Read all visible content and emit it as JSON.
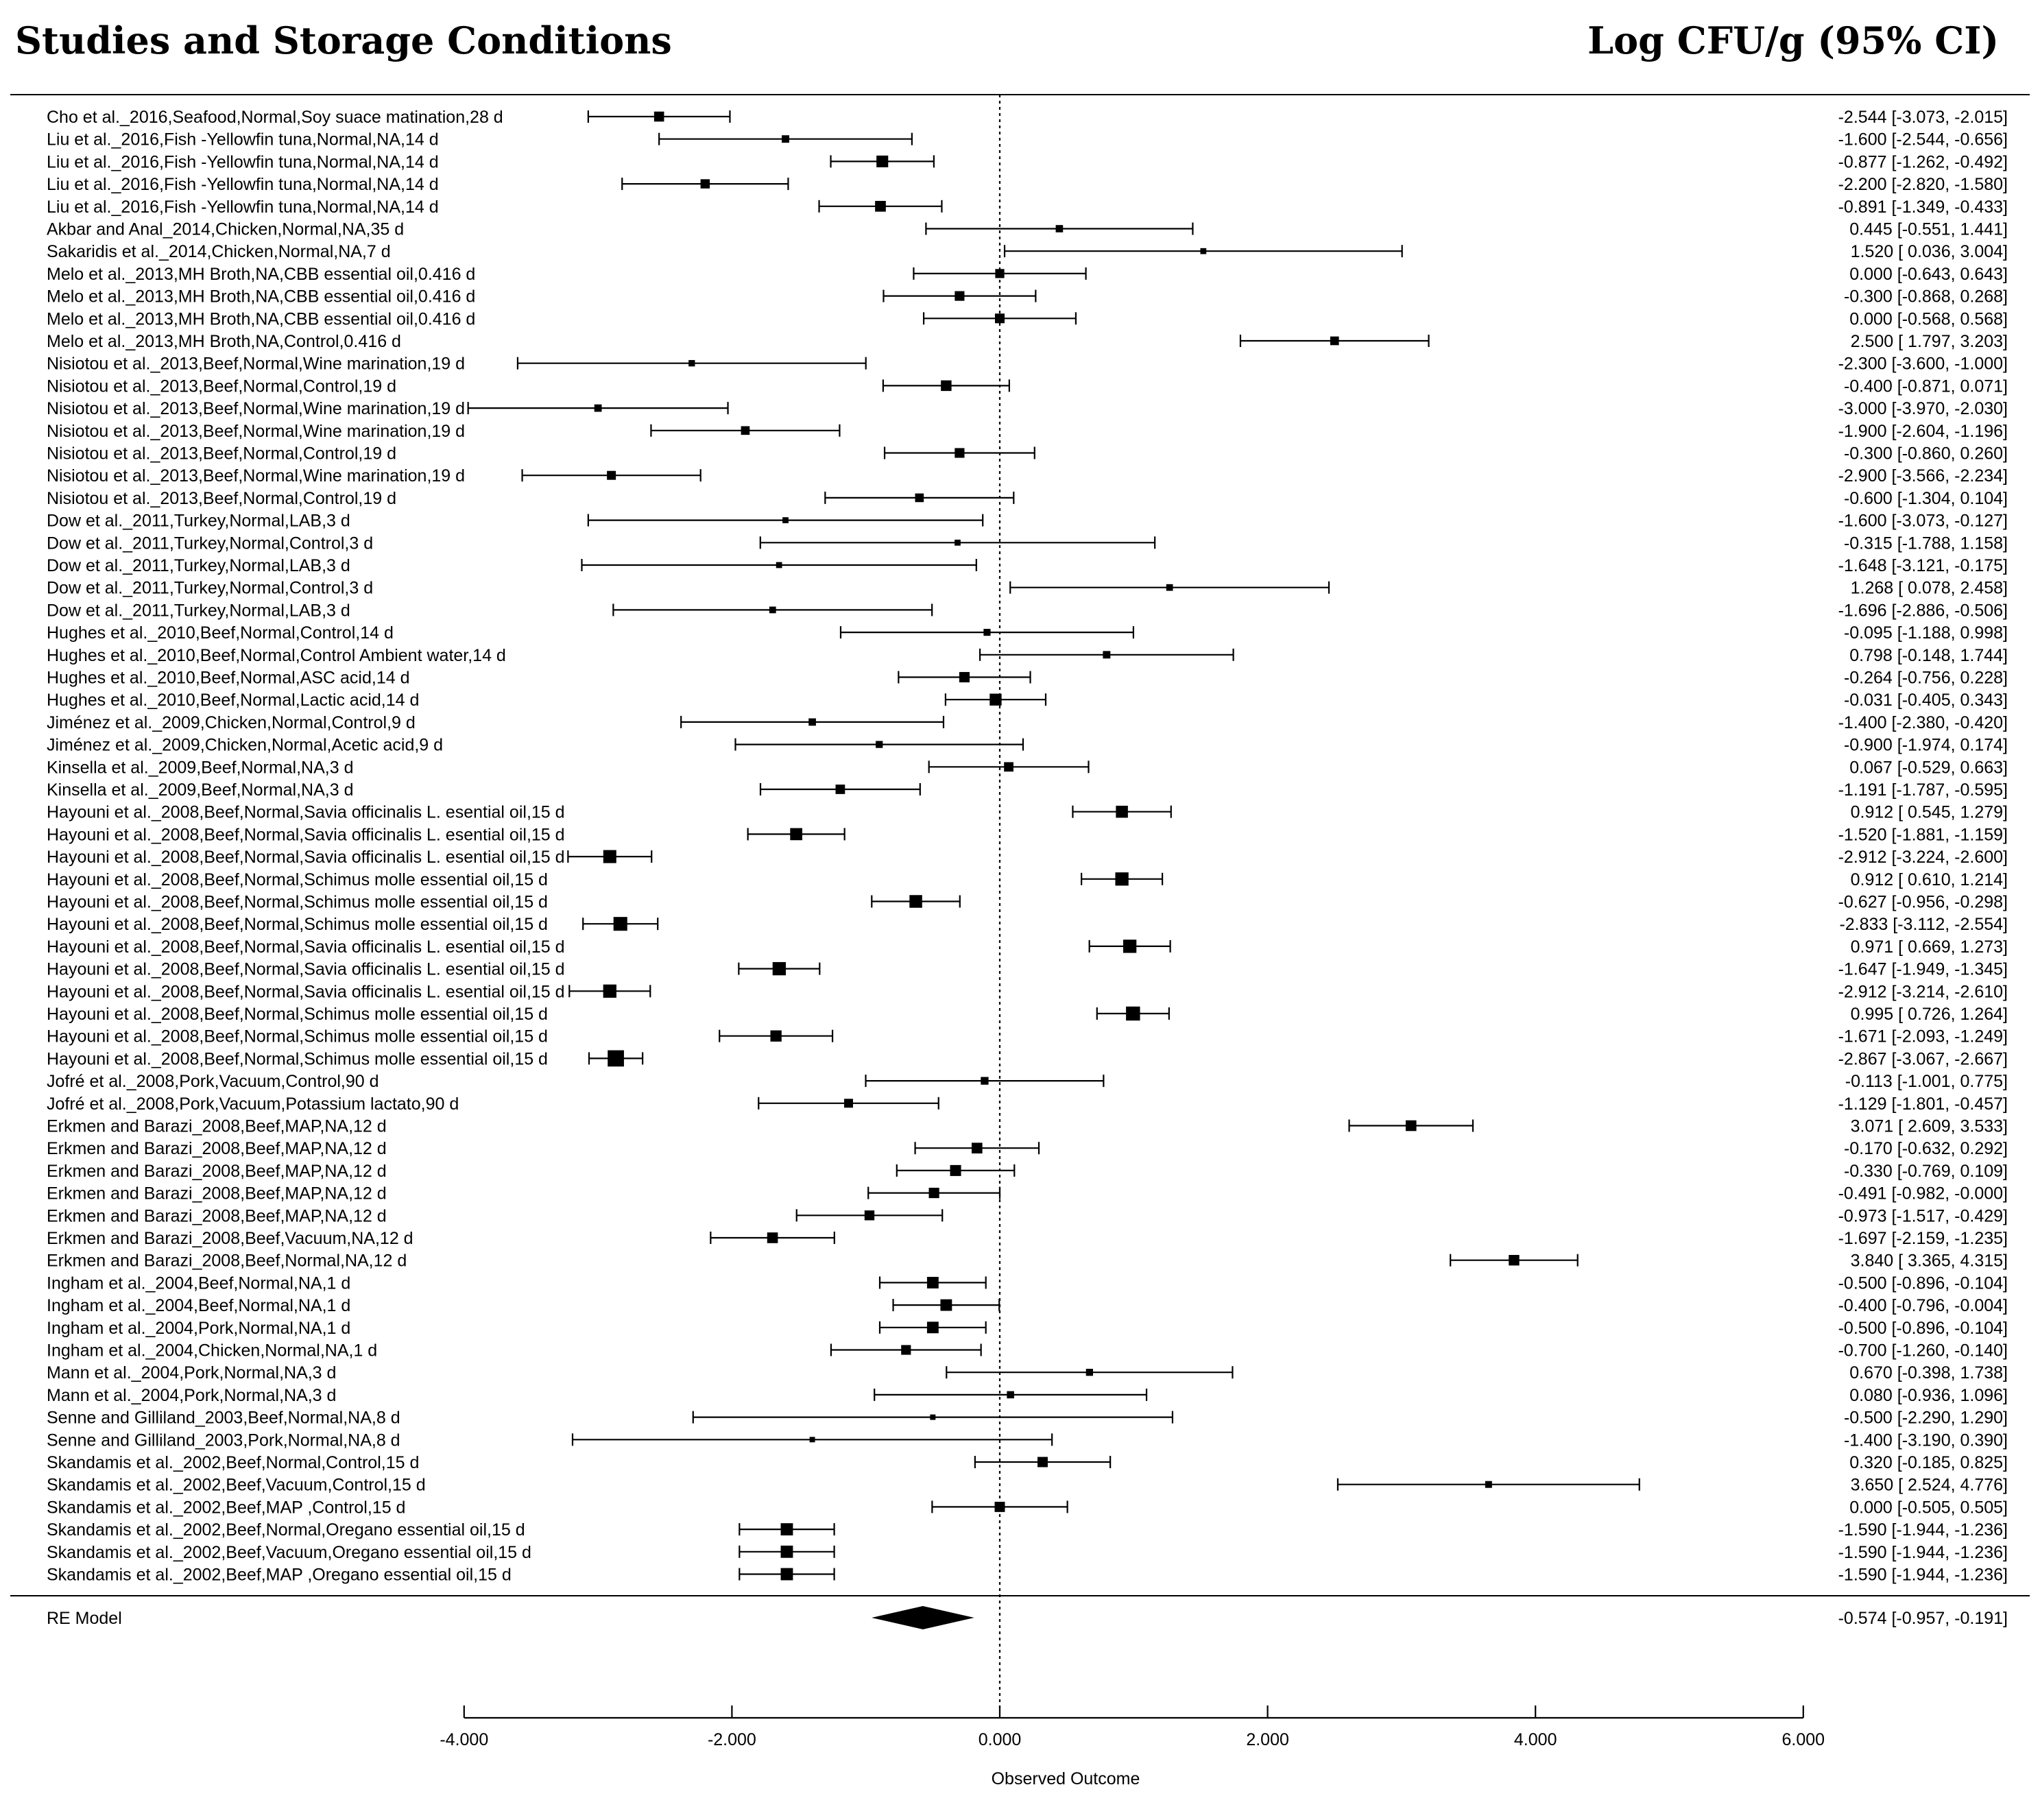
{
  "header": {
    "left_title": "Studies and Storage Conditions",
    "right_title": "Log CFU/g (95% CI)"
  },
  "chart_data": {
    "type": "forest",
    "xlabel": "Observed Outcome",
    "xlim": [
      -4.0,
      6.0
    ],
    "xticks": [
      -4.0,
      -2.0,
      0.0,
      2.0,
      4.0,
      6.0
    ],
    "xtick_labels": [
      "-4.000",
      "-2.000",
      "0.000",
      "2.000",
      "4.000",
      "6.000"
    ],
    "reference_line": 0,
    "studies": [
      {
        "label": "Cho et al._2016,Seafood,Normal,Soy suace matination,28 d",
        "est": -2.544,
        "lo": -3.073,
        "hi": -2.015,
        "text": "-2.544 [-3.073, -2.015]"
      },
      {
        "label": "Liu et al._2016,Fish -Yellowfin tuna,Normal,NA,14 d",
        "est": -1.6,
        "lo": -2.544,
        "hi": -0.656,
        "text": "-1.600 [-2.544, -0.656]"
      },
      {
        "label": "Liu et al._2016,Fish -Yellowfin tuna,Normal,NA,14 d",
        "est": -0.877,
        "lo": -1.262,
        "hi": -0.492,
        "text": "-0.877 [-1.262, -0.492]"
      },
      {
        "label": "Liu et al._2016,Fish -Yellowfin tuna,Normal,NA,14 d",
        "est": -2.2,
        "lo": -2.82,
        "hi": -1.58,
        "text": "-2.200 [-2.820, -1.580]"
      },
      {
        "label": "Liu et al._2016,Fish -Yellowfin tuna,Normal,NA,14 d",
        "est": -0.891,
        "lo": -1.349,
        "hi": -0.433,
        "text": "-0.891 [-1.349, -0.433]"
      },
      {
        "label": "Akbar and Anal_2014,Chicken,Normal,NA,35 d",
        "est": 0.445,
        "lo": -0.551,
        "hi": 1.441,
        "text": "0.445 [-0.551, 1.441]"
      },
      {
        "label": "Sakaridis et al._2014,Chicken,Normal,NA,7 d",
        "est": 1.52,
        "lo": 0.036,
        "hi": 3.004,
        "text": "1.520 [ 0.036, 3.004]"
      },
      {
        "label": "Melo et al._2013,MH Broth,NA,CBB essential oil,0.416 d",
        "est": 0.0,
        "lo": -0.643,
        "hi": 0.643,
        "text": "0.000 [-0.643, 0.643]"
      },
      {
        "label": "Melo et al._2013,MH Broth,NA,CBB essential oil,0.416 d",
        "est": -0.3,
        "lo": -0.868,
        "hi": 0.268,
        "text": "-0.300 [-0.868, 0.268]"
      },
      {
        "label": "Melo et al._2013,MH Broth,NA,CBB essential oil,0.416 d",
        "est": 0.0,
        "lo": -0.568,
        "hi": 0.568,
        "text": "0.000 [-0.568, 0.568]"
      },
      {
        "label": "Melo et al._2013,MH Broth,NA,Control,0.416 d",
        "est": 2.5,
        "lo": 1.797,
        "hi": 3.203,
        "text": "2.500 [ 1.797, 3.203]"
      },
      {
        "label": "Nisiotou et al._2013,Beef,Normal,Wine marination,19 d",
        "est": -2.3,
        "lo": -3.6,
        "hi": -1.0,
        "text": "-2.300 [-3.600, -1.000]"
      },
      {
        "label": "Nisiotou et al._2013,Beef,Normal,Control,19 d",
        "est": -0.4,
        "lo": -0.871,
        "hi": 0.071,
        "text": "-0.400 [-0.871, 0.071]"
      },
      {
        "label": "Nisiotou et al._2013,Beef,Normal,Wine marination,19 d",
        "est": -3.0,
        "lo": -3.97,
        "hi": -2.03,
        "text": "-3.000 [-3.970, -2.030]"
      },
      {
        "label": "Nisiotou et al._2013,Beef,Normal,Wine marination,19 d",
        "est": -1.9,
        "lo": -2.604,
        "hi": -1.196,
        "text": "-1.900 [-2.604, -1.196]"
      },
      {
        "label": "Nisiotou et al._2013,Beef,Normal,Control,19 d",
        "est": -0.3,
        "lo": -0.86,
        "hi": 0.26,
        "text": "-0.300 [-0.860, 0.260]"
      },
      {
        "label": "Nisiotou et al._2013,Beef,Normal,Wine marination,19 d",
        "est": -2.9,
        "lo": -3.566,
        "hi": -2.234,
        "text": "-2.900 [-3.566, -2.234]"
      },
      {
        "label": "Nisiotou et al._2013,Beef,Normal,Control,19 d",
        "est": -0.6,
        "lo": -1.304,
        "hi": 0.104,
        "text": "-0.600 [-1.304, 0.104]"
      },
      {
        "label": "Dow et al._2011,Turkey,Normal,LAB,3 d",
        "est": -1.6,
        "lo": -3.073,
        "hi": -0.127,
        "text": "-1.600 [-3.073, -0.127]"
      },
      {
        "label": "Dow et al._2011,Turkey,Normal,Control,3 d",
        "est": -0.315,
        "lo": -1.788,
        "hi": 1.158,
        "text": "-0.315 [-1.788, 1.158]"
      },
      {
        "label": "Dow et al._2011,Turkey,Normal,LAB,3 d",
        "est": -1.648,
        "lo": -3.121,
        "hi": -0.175,
        "text": "-1.648 [-3.121, -0.175]"
      },
      {
        "label": "Dow et al._2011,Turkey,Normal,Control,3 d",
        "est": 1.268,
        "lo": 0.078,
        "hi": 2.458,
        "text": "1.268 [ 0.078, 2.458]"
      },
      {
        "label": "Dow et al._2011,Turkey,Normal,LAB,3 d",
        "est": -1.696,
        "lo": -2.886,
        "hi": -0.506,
        "text": "-1.696 [-2.886, -0.506]"
      },
      {
        "label": "Hughes et al._2010,Beef,Normal,Control,14 d",
        "est": -0.095,
        "lo": -1.188,
        "hi": 0.998,
        "text": "-0.095 [-1.188, 0.998]"
      },
      {
        "label": "Hughes et al._2010,Beef,Normal,Control Ambient water,14 d",
        "est": 0.798,
        "lo": -0.148,
        "hi": 1.744,
        "text": "0.798 [-0.148, 1.744]"
      },
      {
        "label": "Hughes et al._2010,Beef,Normal,ASC acid,14 d",
        "est": -0.264,
        "lo": -0.756,
        "hi": 0.228,
        "text": "-0.264 [-0.756, 0.228]"
      },
      {
        "label": "Hughes et al._2010,Beef,Normal,Lactic acid,14 d",
        "est": -0.031,
        "lo": -0.405,
        "hi": 0.343,
        "text": "-0.031 [-0.405, 0.343]"
      },
      {
        "label": "Jiménez et al._2009,Chicken,Normal,Control,9 d",
        "est": -1.4,
        "lo": -2.38,
        "hi": -0.42,
        "text": "-1.400 [-2.380, -0.420]"
      },
      {
        "label": "Jiménez et al._2009,Chicken,Normal,Acetic acid,9 d",
        "est": -0.9,
        "lo": -1.974,
        "hi": 0.174,
        "text": "-0.900 [-1.974, 0.174]"
      },
      {
        "label": "Kinsella et al._2009,Beef,Normal,NA,3 d",
        "est": 0.067,
        "lo": -0.529,
        "hi": 0.663,
        "text": "0.067 [-0.529, 0.663]"
      },
      {
        "label": "Kinsella et al._2009,Beef,Normal,NA,3 d",
        "est": -1.191,
        "lo": -1.787,
        "hi": -0.595,
        "text": "-1.191 [-1.787, -0.595]"
      },
      {
        "label": "Hayouni et al._2008,Beef,Normal,Savia officinalis L. esential oil,15 d",
        "est": 0.912,
        "lo": 0.545,
        "hi": 1.279,
        "text": "0.912 [ 0.545, 1.279]"
      },
      {
        "label": "Hayouni et al._2008,Beef,Normal,Savia officinalis L. esential oil,15 d",
        "est": -1.52,
        "lo": -1.881,
        "hi": -1.159,
        "text": "-1.520 [-1.881, -1.159]"
      },
      {
        "label": "Hayouni et al._2008,Beef,Normal,Savia officinalis L. esential oil,15 d",
        "est": -2.912,
        "lo": -3.224,
        "hi": -2.6,
        "text": "-2.912 [-3.224, -2.600]"
      },
      {
        "label": "Hayouni et al._2008,Beef,Normal,Schimus molle essential oil,15 d",
        "est": 0.912,
        "lo": 0.61,
        "hi": 1.214,
        "text": "0.912 [ 0.610, 1.214]"
      },
      {
        "label": "Hayouni et al._2008,Beef,Normal,Schimus molle essential oil,15 d",
        "est": -0.627,
        "lo": -0.956,
        "hi": -0.298,
        "text": "-0.627 [-0.956, -0.298]"
      },
      {
        "label": "Hayouni et al._2008,Beef,Normal,Schimus molle essential oil,15 d",
        "est": -2.833,
        "lo": -3.112,
        "hi": -2.554,
        "text": "-2.833 [-3.112, -2.554]"
      },
      {
        "label": "Hayouni et al._2008,Beef,Normal,Savia officinalis L. esential oil,15 d",
        "est": 0.971,
        "lo": 0.669,
        "hi": 1.273,
        "text": "0.971 [ 0.669, 1.273]"
      },
      {
        "label": "Hayouni et al._2008,Beef,Normal,Savia officinalis L. esential oil,15 d",
        "est": -1.647,
        "lo": -1.949,
        "hi": -1.345,
        "text": "-1.647 [-1.949, -1.345]"
      },
      {
        "label": "Hayouni et al._2008,Beef,Normal,Savia officinalis L. esential oil,15 d",
        "est": -2.912,
        "lo": -3.214,
        "hi": -2.61,
        "text": "-2.912 [-3.214, -2.610]"
      },
      {
        "label": "Hayouni et al._2008,Beef,Normal,Schimus molle essential oil,15 d",
        "est": 0.995,
        "lo": 0.726,
        "hi": 1.264,
        "text": "0.995 [ 0.726, 1.264]"
      },
      {
        "label": "Hayouni et al._2008,Beef,Normal,Schimus molle essential oil,15 d",
        "est": -1.671,
        "lo": -2.093,
        "hi": -1.249,
        "text": "-1.671 [-2.093, -1.249]"
      },
      {
        "label": "Hayouni et al._2008,Beef,Normal,Schimus molle essential oil,15 d",
        "est": -2.867,
        "lo": -3.067,
        "hi": -2.667,
        "text": "-2.867 [-3.067, -2.667]"
      },
      {
        "label": "Jofré et al._2008,Pork,Vacuum,Control,90 d",
        "est": -0.113,
        "lo": -1.001,
        "hi": 0.775,
        "text": "-0.113 [-1.001, 0.775]"
      },
      {
        "label": "Jofré et al._2008,Pork,Vacuum,Potassium lactato,90 d",
        "est": -1.129,
        "lo": -1.801,
        "hi": -0.457,
        "text": "-1.129 [-1.801, -0.457]"
      },
      {
        "label": "Erkmen and Barazi_2008,Beef,MAP,NA,12 d",
        "est": 3.071,
        "lo": 2.609,
        "hi": 3.533,
        "text": "3.071 [ 2.609, 3.533]"
      },
      {
        "label": "Erkmen and Barazi_2008,Beef,MAP,NA,12 d",
        "est": -0.17,
        "lo": -0.632,
        "hi": 0.292,
        "text": "-0.170 [-0.632, 0.292]"
      },
      {
        "label": "Erkmen and Barazi_2008,Beef,MAP,NA,12 d",
        "est": -0.33,
        "lo": -0.769,
        "hi": 0.109,
        "text": "-0.330 [-0.769, 0.109]"
      },
      {
        "label": "Erkmen and Barazi_2008,Beef,MAP,NA,12 d",
        "est": -0.491,
        "lo": -0.982,
        "hi": -0.0,
        "text": "-0.491 [-0.982, -0.000]"
      },
      {
        "label": "Erkmen and Barazi_2008,Beef,MAP,NA,12 d",
        "est": -0.973,
        "lo": -1.517,
        "hi": -0.429,
        "text": "-0.973 [-1.517, -0.429]"
      },
      {
        "label": "Erkmen and Barazi_2008,Beef,Vacuum,NA,12 d",
        "est": -1.697,
        "lo": -2.159,
        "hi": -1.235,
        "text": "-1.697 [-2.159, -1.235]"
      },
      {
        "label": "Erkmen and Barazi_2008,Beef,Normal,NA,12 d",
        "est": 3.84,
        "lo": 3.365,
        "hi": 4.315,
        "text": "3.840 [ 3.365, 4.315]"
      },
      {
        "label": "Ingham et al._2004,Beef,Normal,NA,1 d",
        "est": -0.5,
        "lo": -0.896,
        "hi": -0.104,
        "text": "-0.500 [-0.896, -0.104]"
      },
      {
        "label": "Ingham et al._2004,Beef,Normal,NA,1 d",
        "est": -0.4,
        "lo": -0.796,
        "hi": -0.004,
        "text": "-0.400 [-0.796, -0.004]"
      },
      {
        "label": "Ingham et al._2004,Pork,Normal,NA,1 d",
        "est": -0.5,
        "lo": -0.896,
        "hi": -0.104,
        "text": "-0.500 [-0.896, -0.104]"
      },
      {
        "label": "Ingham et al._2004,Chicken,Normal,NA,1 d",
        "est": -0.7,
        "lo": -1.26,
        "hi": -0.14,
        "text": "-0.700 [-1.260, -0.140]"
      },
      {
        "label": "Mann et al._2004,Pork,Normal,NA,3 d",
        "est": 0.67,
        "lo": -0.398,
        "hi": 1.738,
        "text": "0.670 [-0.398, 1.738]"
      },
      {
        "label": "Mann et al._2004,Pork,Normal,NA,3 d",
        "est": 0.08,
        "lo": -0.936,
        "hi": 1.096,
        "text": "0.080 [-0.936, 1.096]"
      },
      {
        "label": "Senne and Gilliland_2003,Beef,Normal,NA,8 d",
        "est": -0.5,
        "lo": -2.29,
        "hi": 1.29,
        "text": "-0.500 [-2.290, 1.290]"
      },
      {
        "label": "Senne and Gilliland_2003,Pork,Normal,NA,8 d",
        "est": -1.4,
        "lo": -3.19,
        "hi": 0.39,
        "text": "-1.400 [-3.190, 0.390]"
      },
      {
        "label": "Skandamis et al._2002,Beef,Normal,Control,15 d",
        "est": 0.32,
        "lo": -0.185,
        "hi": 0.825,
        "text": "0.320 [-0.185, 0.825]"
      },
      {
        "label": "Skandamis et al._2002,Beef,Vacuum,Control,15 d",
        "est": 3.65,
        "lo": 2.524,
        "hi": 4.776,
        "text": "3.650 [ 2.524, 4.776]"
      },
      {
        "label": "Skandamis et al._2002,Beef,MAP ,Control,15 d",
        "est": 0.0,
        "lo": -0.505,
        "hi": 0.505,
        "text": "0.000 [-0.505, 0.505]"
      },
      {
        "label": "Skandamis et al._2002,Beef,Normal,Oregano essential oil,15 d",
        "est": -1.59,
        "lo": -1.944,
        "hi": -1.236,
        "text": "-1.590 [-1.944, -1.236]"
      },
      {
        "label": "Skandamis et al._2002,Beef,Vacuum,Oregano essential oil,15 d",
        "est": -1.59,
        "lo": -1.944,
        "hi": -1.236,
        "text": "-1.590 [-1.944, -1.236]"
      },
      {
        "label": "Skandamis et al._2002,Beef,MAP ,Oregano essential oil,15 d",
        "est": -1.59,
        "lo": -1.944,
        "hi": -1.236,
        "text": "-1.590 [-1.944, -1.236]"
      }
    ],
    "summary": {
      "label": "RE Model",
      "est": -0.574,
      "lo": -0.957,
      "hi": -0.191,
      "text": "-0.574 [-0.957, -0.191]"
    }
  }
}
